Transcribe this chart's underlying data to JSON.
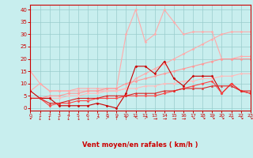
{
  "xlabel": "Vent moyen/en rafales ( km/h )",
  "xlim": [
    0,
    23
  ],
  "ylim": [
    -1,
    42
  ],
  "yticks": [
    0,
    5,
    10,
    15,
    20,
    25,
    30,
    35,
    40
  ],
  "xticks": [
    0,
    1,
    2,
    3,
    4,
    5,
    6,
    7,
    8,
    9,
    10,
    11,
    12,
    13,
    14,
    15,
    16,
    17,
    18,
    19,
    20,
    21,
    22,
    23
  ],
  "bg_color": "#c8eeee",
  "grid_color": "#99cccc",
  "axis_color": "#cc0000",
  "series": [
    {
      "name": "gust_spiky_light",
      "x": [
        0,
        1,
        2,
        3,
        4,
        5,
        6,
        7,
        8,
        9,
        10,
        11,
        12,
        13,
        14,
        15,
        16,
        17,
        18,
        19,
        20,
        21,
        22,
        23
      ],
      "y": [
        7,
        10,
        7,
        7,
        7,
        8,
        8,
        8,
        8,
        8,
        30,
        40,
        27,
        30,
        40,
        35,
        30,
        31,
        31,
        31,
        20,
        20,
        21,
        21
      ],
      "color": "#ffaaaa",
      "marker": "D",
      "markersize": 1.5,
      "linewidth": 0.8
    },
    {
      "name": "upper_linear_light",
      "x": [
        0,
        1,
        2,
        3,
        4,
        5,
        6,
        7,
        8,
        9,
        10,
        11,
        12,
        13,
        14,
        15,
        16,
        17,
        18,
        19,
        20,
        21,
        22,
        23
      ],
      "y": [
        15,
        10,
        7,
        7,
        7,
        7,
        7,
        7,
        7,
        7,
        8,
        12,
        14,
        16,
        18,
        20,
        22,
        24,
        26,
        28,
        30,
        31,
        31,
        31
      ],
      "color": "#ffaaaa",
      "marker": "D",
      "markersize": 1.5,
      "linewidth": 0.8
    },
    {
      "name": "mid_linear_pink",
      "x": [
        0,
        1,
        2,
        3,
        4,
        5,
        6,
        7,
        8,
        9,
        10,
        11,
        12,
        13,
        14,
        15,
        16,
        17,
        18,
        19,
        20,
        21,
        22,
        23
      ],
      "y": [
        4,
        4,
        5,
        5,
        6,
        6,
        7,
        7,
        8,
        8,
        10,
        11,
        12,
        13,
        14,
        15,
        16,
        17,
        18,
        19,
        20,
        20,
        20,
        20
      ],
      "color": "#ff9999",
      "marker": "D",
      "markersize": 1.5,
      "linewidth": 0.8
    },
    {
      "name": "lower_linear_light",
      "x": [
        0,
        1,
        2,
        3,
        4,
        5,
        6,
        7,
        8,
        9,
        10,
        11,
        12,
        13,
        14,
        15,
        16,
        17,
        18,
        19,
        20,
        21,
        22,
        23
      ],
      "y": [
        4,
        4,
        4,
        4,
        5,
        5,
        6,
        6,
        7,
        7,
        8,
        8,
        9,
        9,
        10,
        10,
        11,
        11,
        12,
        12,
        13,
        13,
        14,
        14
      ],
      "color": "#ffbbbb",
      "marker": "D",
      "markersize": 1.5,
      "linewidth": 0.8
    },
    {
      "name": "dark_zigzag",
      "x": [
        0,
        1,
        2,
        3,
        4,
        5,
        6,
        7,
        8,
        9,
        10,
        11,
        12,
        13,
        14,
        15,
        16,
        17,
        18,
        19,
        20,
        21,
        22,
        23
      ],
      "y": [
        7,
        4,
        4,
        1,
        1,
        1,
        1,
        2,
        1,
        0,
        6,
        17,
        17,
        14,
        19,
        12,
        9,
        13,
        13,
        13,
        6,
        10,
        7,
        6
      ],
      "color": "#cc0000",
      "marker": "D",
      "markersize": 1.5,
      "linewidth": 0.8
    },
    {
      "name": "red_mid",
      "x": [
        0,
        1,
        2,
        3,
        4,
        5,
        6,
        7,
        8,
        9,
        10,
        11,
        12,
        13,
        14,
        15,
        16,
        17,
        18,
        19,
        20,
        21,
        22,
        23
      ],
      "y": [
        4,
        4,
        1,
        2,
        2,
        3,
        3,
        4,
        4,
        4,
        5,
        5,
        5,
        5,
        6,
        7,
        8,
        9,
        10,
        11,
        6,
        10,
        7,
        6
      ],
      "color": "#ff4444",
      "marker": "D",
      "markersize": 1.5,
      "linewidth": 0.8
    },
    {
      "name": "red_lower_linear",
      "x": [
        0,
        1,
        2,
        3,
        4,
        5,
        6,
        7,
        8,
        9,
        10,
        11,
        12,
        13,
        14,
        15,
        16,
        17,
        18,
        19,
        20,
        21,
        22,
        23
      ],
      "y": [
        4,
        4,
        2,
        2,
        3,
        4,
        4,
        4,
        5,
        5,
        5,
        6,
        6,
        6,
        7,
        7,
        8,
        8,
        8,
        9,
        9,
        9,
        7,
        7
      ],
      "color": "#dd2222",
      "marker": "^",
      "markersize": 1.5,
      "linewidth": 0.8
    }
  ],
  "wind_symbols": [
    "↙",
    "↓",
    "↓",
    "↓",
    "↓",
    "↓",
    "↓",
    "↗",
    "↗",
    "↑",
    "↑",
    "↖",
    "↗",
    "→",
    "→",
    "→",
    "→",
    "↘",
    "↘",
    "↘",
    "↘",
    "↘",
    "↘",
    "↘"
  ]
}
